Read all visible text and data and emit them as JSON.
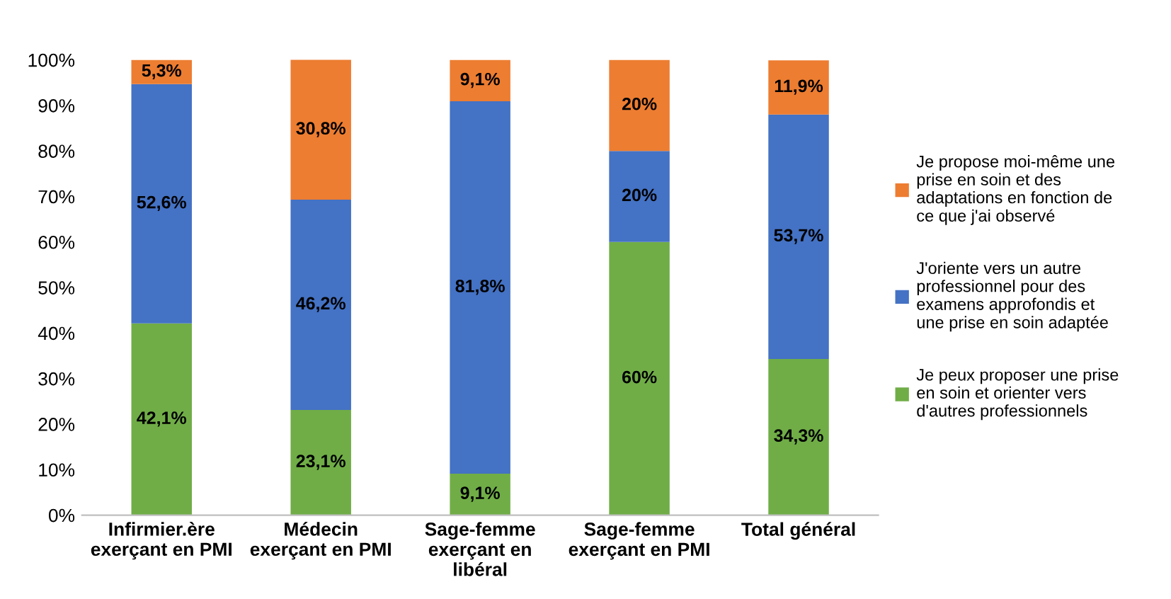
{
  "chart_data": {
    "type": "bar",
    "stacked": true,
    "categories": [
      "Infirmier.ère\nexerçant en PMI",
      "Médecin\nexerçant en PMI",
      "Sage-femme\nexerçant en\nlibéral",
      "Sage-femme\nexerçant en PMI",
      "Total général"
    ],
    "series": [
      {
        "name": "Je peux proposer une prise\nen soin et orienter vers\nd'autres professionnels",
        "color": "#70ad47",
        "values": [
          42.1,
          23.1,
          9.1,
          60,
          34.3
        ],
        "value_labels": [
          "42,1%",
          "23,1%",
          "9,1%",
          "60%",
          "34,3%"
        ]
      },
      {
        "name": "J'oriente vers un autre\nprofessionnel pour des\nexamens approfondis et\nune prise en soin adaptée",
        "color": "#4472c4",
        "values": [
          52.6,
          46.2,
          81.8,
          20,
          53.7
        ],
        "value_labels": [
          "52,6%",
          "46,2%",
          "81,8%",
          "20%",
          "53,7%"
        ]
      },
      {
        "name": "Je propose moi-même une\nprise en soin et des\nadaptations en fonction de\nce que j'ai observé",
        "color": "#ed7d31",
        "values": [
          5.3,
          30.8,
          9.1,
          20,
          11.9
        ],
        "value_labels": [
          "5,3%",
          "30,8%",
          "9,1%",
          "20%",
          "11,9%"
        ]
      }
    ],
    "ylim": [
      0,
      100
    ],
    "yticks": [
      {
        "value": 0,
        "label": "0%"
      },
      {
        "value": 10,
        "label": "10%"
      },
      {
        "value": 20,
        "label": "20%"
      },
      {
        "value": 30,
        "label": "30%"
      },
      {
        "value": 40,
        "label": "40%"
      },
      {
        "value": 50,
        "label": "50%"
      },
      {
        "value": 60,
        "label": "60%"
      },
      {
        "value": 70,
        "label": "70%"
      },
      {
        "value": 80,
        "label": "80%"
      },
      {
        "value": 90,
        "label": "90%"
      },
      {
        "value": 100,
        "label": "100%"
      }
    ],
    "grid": false,
    "legend": "right"
  }
}
